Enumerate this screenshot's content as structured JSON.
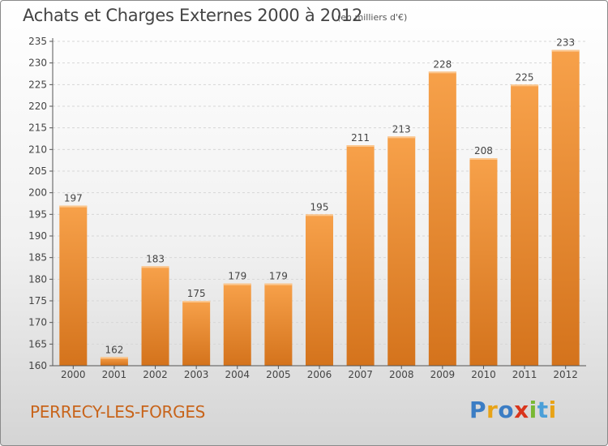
{
  "header": {
    "title": "Achats et Charges Externes 2000 à 2012",
    "subtitle": "(en milliers d'€)"
  },
  "footer": {
    "city": "PERRECY-LES-FORGES",
    "logo_letters": [
      "P",
      "r",
      "o",
      "x",
      "i",
      "t",
      "i"
    ],
    "logo_colors": [
      "#3b7dc4",
      "#e8a317",
      "#3b7dc4",
      "#d9351c",
      "#79b833",
      "#4a9fd8",
      "#e8a317"
    ]
  },
  "colors": {
    "bar_light": "#f7a14a",
    "bar_dark": "#d4731c",
    "grid": "#d6d6d6",
    "axis": "#555555",
    "city": "#c8641a"
  },
  "chart_data": {
    "type": "bar",
    "categories": [
      "2000",
      "2001",
      "2002",
      "2003",
      "2004",
      "2005",
      "2006",
      "2007",
      "2008",
      "2009",
      "2010",
      "2011",
      "2012"
    ],
    "values": [
      197,
      162,
      183,
      175,
      179,
      179,
      195,
      211,
      213,
      228,
      208,
      225,
      233
    ],
    "ylim": [
      160,
      235
    ],
    "yticks": [
      160,
      165,
      170,
      175,
      180,
      185,
      190,
      195,
      200,
      205,
      210,
      215,
      220,
      225,
      230,
      235
    ],
    "grid": "horizontal dotted",
    "data_labels": true
  }
}
